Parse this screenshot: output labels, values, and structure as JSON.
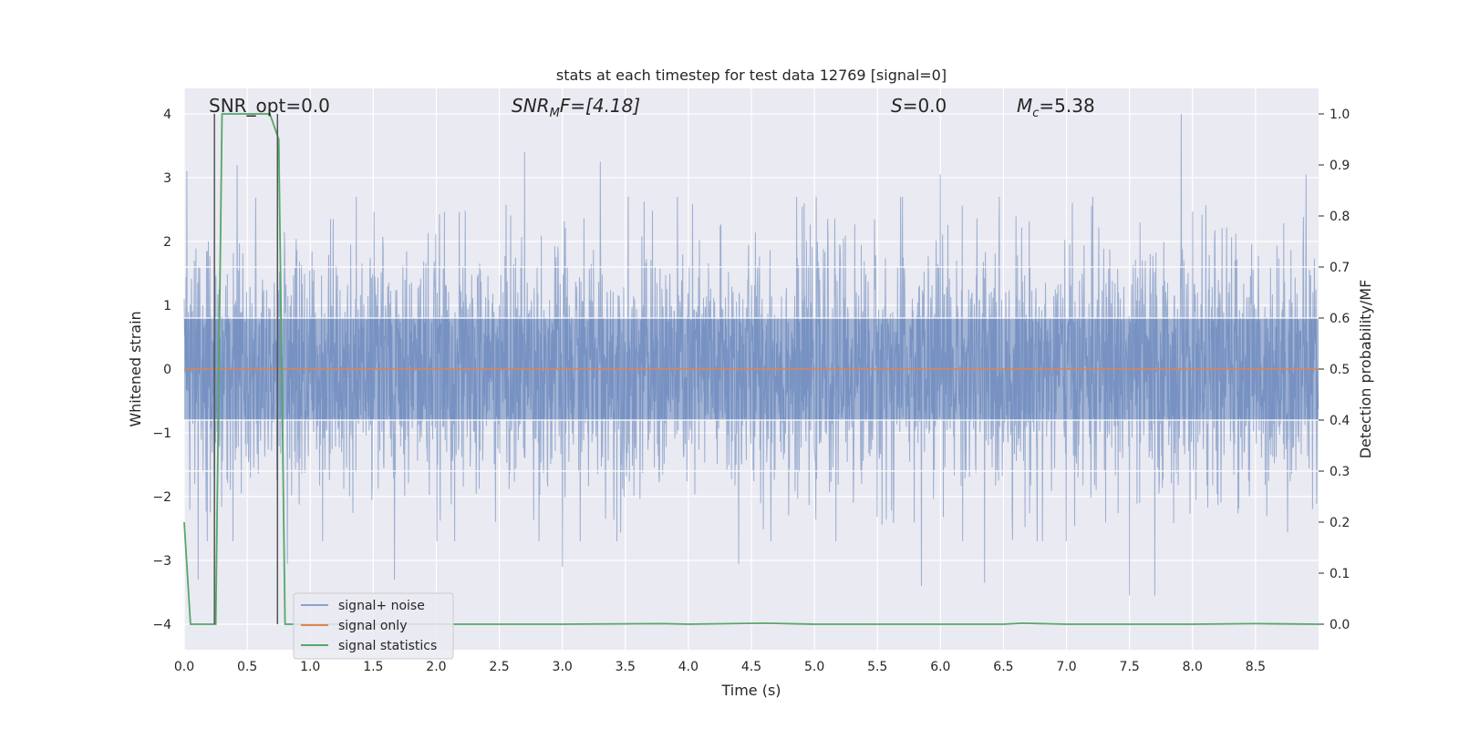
{
  "chart_data": {
    "type": "line",
    "title": "stats at each timestep for test data 12769 [signal=0]",
    "xlabel": "Time (s)",
    "ylabel_left": "Whitened strain",
    "ylabel_right": "Detection probability/MF",
    "xlim": [
      0.0,
      9.0
    ],
    "ylim_left": [
      -4.4,
      4.4
    ],
    "ylim_right": [
      -0.05,
      1.05
    ],
    "x_ticks": [
      0.0,
      0.5,
      1.0,
      1.5,
      2.0,
      2.5,
      3.0,
      3.5,
      4.0,
      4.5,
      5.0,
      5.5,
      6.0,
      6.5,
      7.0,
      7.5,
      8.0,
      8.5
    ],
    "x_tick_labels": [
      "0.0",
      "0.5",
      "1.0",
      "1.5",
      "2.0",
      "2.5",
      "3.0",
      "3.5",
      "4.0",
      "4.5",
      "5.0",
      "5.5",
      "6.0",
      "6.5",
      "7.0",
      "7.5",
      "8.0",
      "8.5"
    ],
    "y_left_ticks": [
      4,
      3,
      2,
      1,
      0,
      -1,
      -2,
      -3,
      -4
    ],
    "y_left_tick_labels": [
      "4",
      "3",
      "2",
      "1",
      "0",
      "−1",
      "−2",
      "−3",
      "−4"
    ],
    "y_right_ticks": [
      1.0,
      0.9,
      0.8,
      0.7,
      0.6,
      0.5,
      0.4,
      0.3,
      0.2,
      0.1,
      0.0
    ],
    "y_right_tick_labels": [
      "1.0",
      "0.9",
      "0.8",
      "0.7",
      "0.6",
      "0.5",
      "0.4",
      "0.3",
      "0.2",
      "0.1",
      "0.0"
    ],
    "grid": true,
    "background": "#eaeaf2",
    "legend_position": "lower-left",
    "annotations": {
      "snr_opt": "SNR_opt=0.0",
      "snr_mf_sym": "SNR",
      "snr_mf_sub": "M",
      "snr_mf_rest": "F=[4.18]",
      "s_sym": "S",
      "s_rest": "=0.0",
      "mc_sym": "M",
      "mc_sub": "c",
      "mc_rest": "=5.38"
    },
    "series": [
      {
        "name": "signal+ noise",
        "axis": "left",
        "color": "#4c72b0",
        "opacity": 0.5,
        "duration_s": 9.0,
        "envelope_typical": [
          -1.6,
          1.6
        ],
        "notable_peaks": [
          {
            "x": 0.02,
            "y": 3.1
          },
          {
            "x": 0.11,
            "y": -3.3
          },
          {
            "x": 0.42,
            "y": 3.2
          },
          {
            "x": 0.82,
            "y": -3.05
          },
          {
            "x": 1.67,
            "y": -3.3
          },
          {
            "x": 2.7,
            "y": 3.4
          },
          {
            "x": 3.0,
            "y": -3.1
          },
          {
            "x": 3.3,
            "y": 3.25
          },
          {
            "x": 4.4,
            "y": -3.05
          },
          {
            "x": 5.85,
            "y": -3.4
          },
          {
            "x": 6.0,
            "y": 3.05
          },
          {
            "x": 6.35,
            "y": -3.35
          },
          {
            "x": 7.5,
            "y": -3.55
          },
          {
            "x": 7.7,
            "y": -3.55
          },
          {
            "x": 7.91,
            "y": 4.0
          },
          {
            "x": 8.9,
            "y": 3.05
          }
        ]
      },
      {
        "name": "signal only",
        "axis": "left",
        "color": "#dd8452",
        "x": [
          0.0,
          9.0
        ],
        "y": [
          0.0,
          0.0
        ]
      },
      {
        "name": "signal statistics",
        "axis": "right",
        "color": "#55a868",
        "x": [
          0.0,
          0.05,
          0.1,
          0.15,
          0.2,
          0.25,
          0.3,
          0.4,
          0.5,
          0.6,
          0.68,
          0.75,
          0.8,
          1.0,
          2.0,
          3.0,
          3.8,
          4.0,
          4.6,
          5.0,
          6.0,
          6.5,
          6.65,
          7.0,
          8.0,
          8.5,
          9.0
        ],
        "y": [
          0.2,
          0.0,
          0.0,
          0.0,
          0.0,
          0.0,
          1.0,
          1.0,
          1.0,
          1.0,
          1.0,
          0.95,
          0.0,
          0.0,
          0.0,
          0.0,
          0.001,
          0.0,
          0.002,
          0.0,
          0.0,
          0.0,
          0.002,
          0.0,
          0.0,
          0.001,
          0.0
        ]
      }
    ],
    "vertical_markers": [
      {
        "x": 0.24,
        "color": "#555555"
      },
      {
        "x": 0.74,
        "color": "#555555"
      }
    ],
    "white_rules_right_axis": [
      0.7,
      0.6,
      0.4,
      0.3
    ]
  }
}
